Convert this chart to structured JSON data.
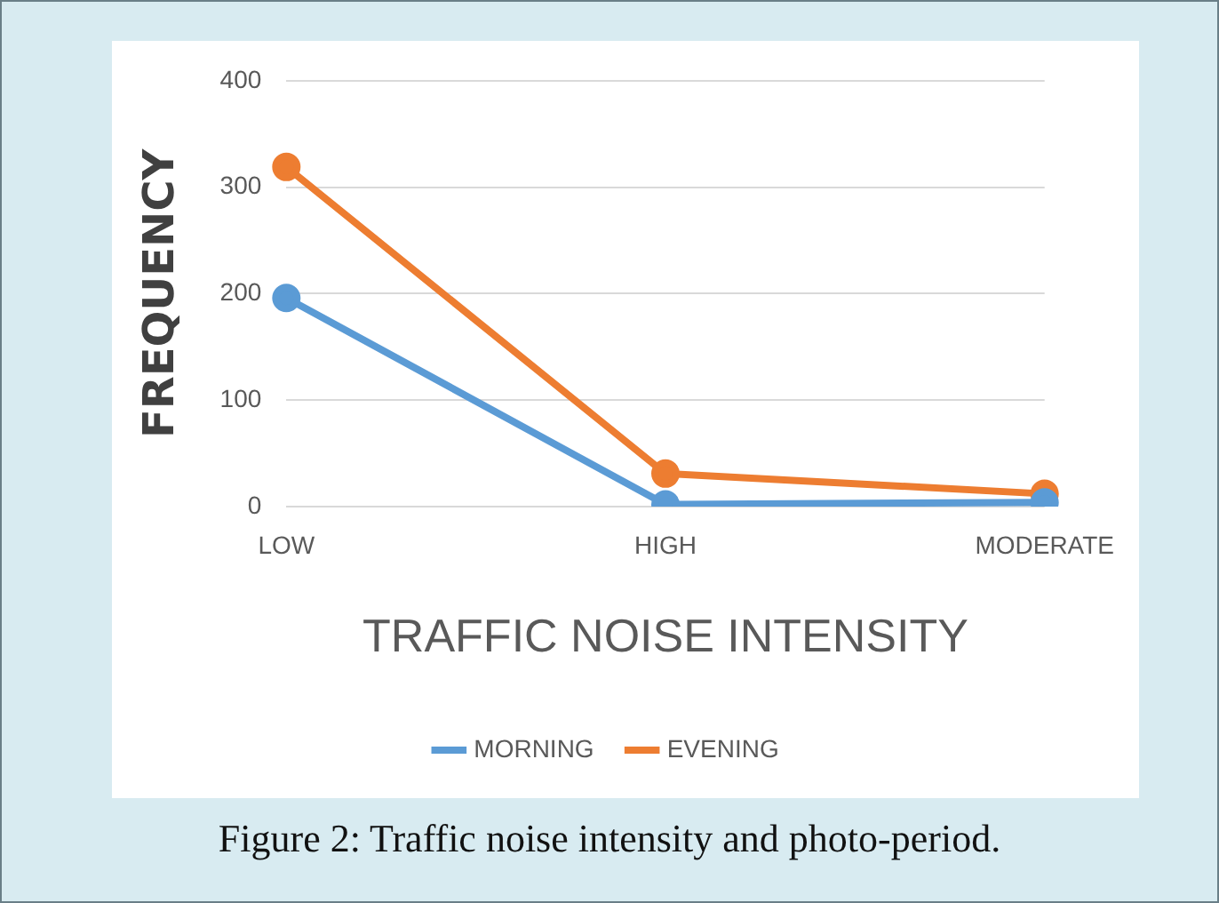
{
  "chart_data": {
    "type": "line",
    "categories": [
      "LOW",
      "HIGH",
      "MODERATE"
    ],
    "series": [
      {
        "name": "MORNING",
        "color": "#5b9bd5",
        "values": [
          196,
          2,
          4
        ]
      },
      {
        "name": "EVENING",
        "color": "#ed7d31",
        "values": [
          319,
          31,
          12
        ]
      }
    ],
    "xlabel": "TRAFFIC NOISE INTENSITY",
    "ylabel": "FREQUENCY",
    "ylim": [
      0,
      400
    ],
    "yticks": [
      0,
      100,
      200,
      300,
      400
    ],
    "grid": "y",
    "legend": "bottom",
    "marker": "circle",
    "line_style": "solid",
    "annotations": [
      "Figure 2: Traffic noise intensity and photo-period."
    ]
  }
}
